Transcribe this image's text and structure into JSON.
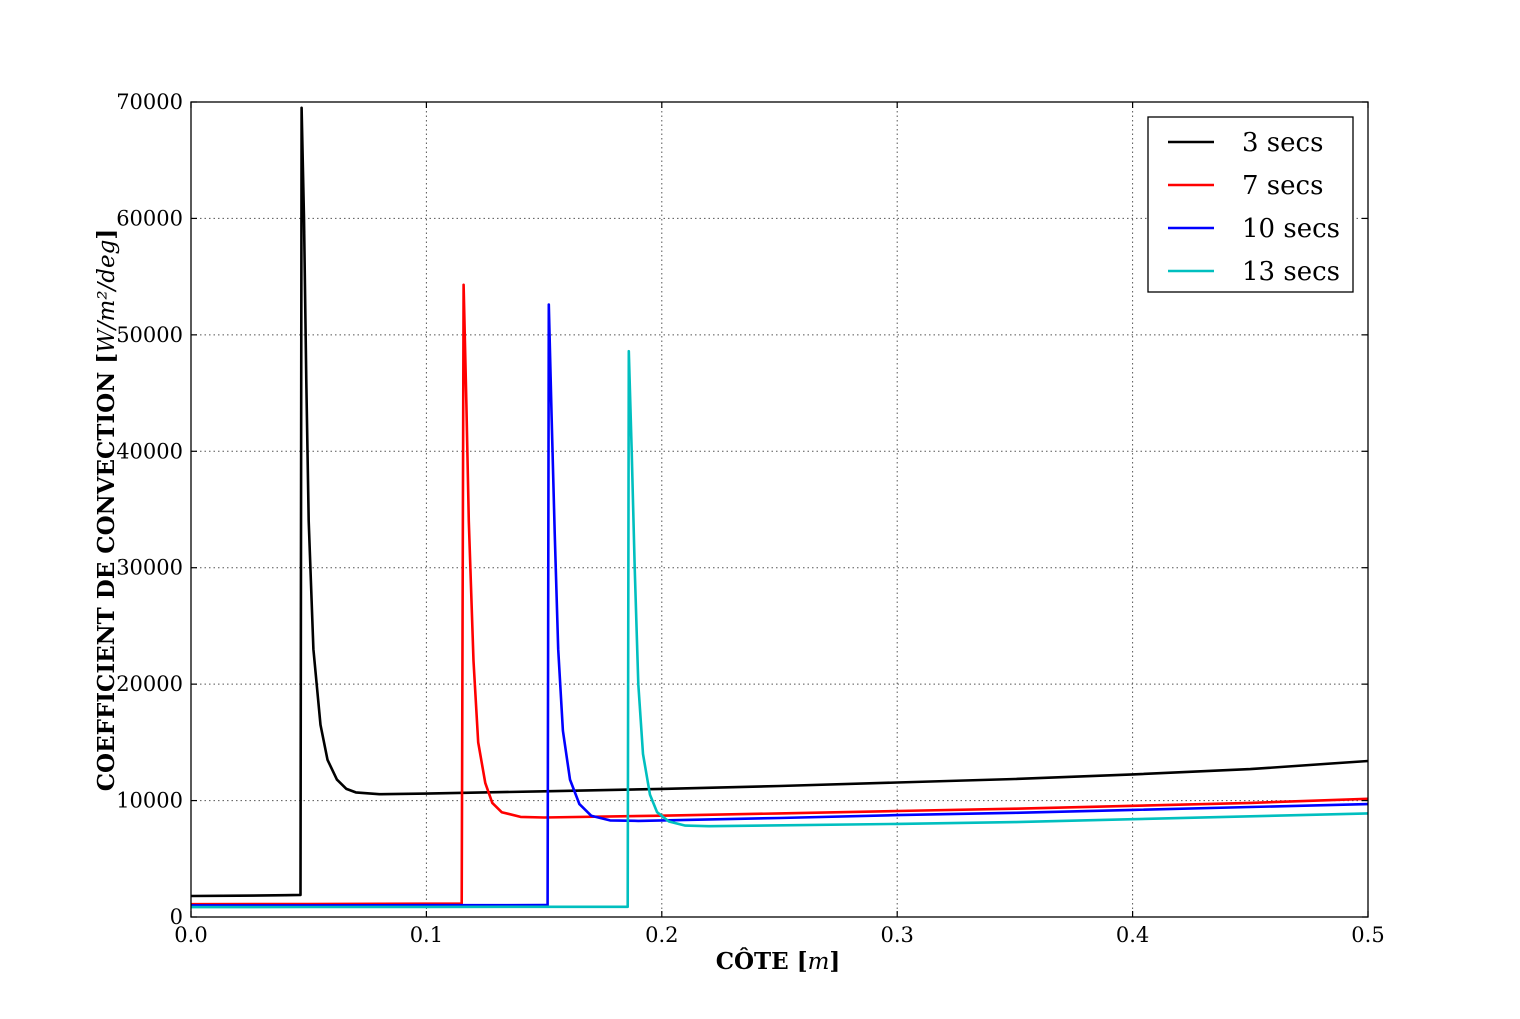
{
  "chart_data": {
    "type": "line",
    "xlabel": {
      "main": "CÔTE",
      "unit": "m"
    },
    "ylabel": {
      "main": "COEFFICIENT DE CONVECTION",
      "unit": "W/m²/deg"
    },
    "xlim": [
      0,
      0.5
    ],
    "ylim": [
      0,
      70000
    ],
    "x_ticks": [
      0.0,
      0.1,
      0.2,
      0.3,
      0.4,
      0.5
    ],
    "x_tick_labels": [
      "0.0",
      "0.1",
      "0.2",
      "0.3",
      "0.4",
      "0.5"
    ],
    "y_ticks": [
      0,
      10000,
      20000,
      30000,
      40000,
      50000,
      60000,
      70000
    ],
    "y_tick_labels": [
      "0",
      "10000",
      "20000",
      "30000",
      "40000",
      "50000",
      "60000",
      "70000"
    ],
    "grid": true,
    "legend_position": "top-right",
    "series": [
      {
        "name": "3 secs",
        "color": "#000000",
        "points": [
          [
            0.0,
            1800
          ],
          [
            0.02,
            1830
          ],
          [
            0.04,
            1870
          ],
          [
            0.0465,
            1900
          ],
          [
            0.047,
            69500
          ],
          [
            0.048,
            60000
          ],
          [
            0.049,
            46000
          ],
          [
            0.05,
            34000
          ],
          [
            0.052,
            23000
          ],
          [
            0.055,
            16500
          ],
          [
            0.058,
            13500
          ],
          [
            0.062,
            11800
          ],
          [
            0.066,
            11000
          ],
          [
            0.07,
            10700
          ],
          [
            0.08,
            10550
          ],
          [
            0.1,
            10600
          ],
          [
            0.15,
            10800
          ],
          [
            0.2,
            11000
          ],
          [
            0.25,
            11250
          ],
          [
            0.3,
            11550
          ],
          [
            0.35,
            11850
          ],
          [
            0.4,
            12250
          ],
          [
            0.45,
            12700
          ],
          [
            0.5,
            13400
          ]
        ]
      },
      {
        "name": "7 secs",
        "color": "#ff0000",
        "points": [
          [
            0.0,
            1100
          ],
          [
            0.05,
            1120
          ],
          [
            0.1,
            1140
          ],
          [
            0.115,
            1150
          ],
          [
            0.1158,
            54300
          ],
          [
            0.117,
            44000
          ],
          [
            0.118,
            34000
          ],
          [
            0.12,
            22000
          ],
          [
            0.122,
            15000
          ],
          [
            0.125,
            11500
          ],
          [
            0.128,
            9800
          ],
          [
            0.132,
            9000
          ],
          [
            0.14,
            8600
          ],
          [
            0.15,
            8550
          ],
          [
            0.2,
            8700
          ],
          [
            0.25,
            8900
          ],
          [
            0.3,
            9100
          ],
          [
            0.35,
            9300
          ],
          [
            0.4,
            9550
          ],
          [
            0.45,
            9800
          ],
          [
            0.5,
            10150
          ]
        ]
      },
      {
        "name": "10 secs",
        "color": "#0000ff",
        "points": [
          [
            0.0,
            1000
          ],
          [
            0.05,
            1000
          ],
          [
            0.1,
            1010
          ],
          [
            0.15,
            1020
          ],
          [
            0.1515,
            1020
          ],
          [
            0.152,
            52600
          ],
          [
            0.1532,
            43000
          ],
          [
            0.1545,
            33000
          ],
          [
            0.156,
            23000
          ],
          [
            0.158,
            16000
          ],
          [
            0.161,
            11800
          ],
          [
            0.165,
            9700
          ],
          [
            0.17,
            8700
          ],
          [
            0.178,
            8300
          ],
          [
            0.19,
            8250
          ],
          [
            0.25,
            8500
          ],
          [
            0.3,
            8750
          ],
          [
            0.35,
            8950
          ],
          [
            0.4,
            9200
          ],
          [
            0.45,
            9450
          ],
          [
            0.5,
            9700
          ]
        ]
      },
      {
        "name": "13 secs",
        "color": "#00bfbf",
        "points": [
          [
            0.0,
            850
          ],
          [
            0.05,
            860
          ],
          [
            0.1,
            870
          ],
          [
            0.15,
            880
          ],
          [
            0.1855,
            880
          ],
          [
            0.186,
            48600
          ],
          [
            0.1872,
            40000
          ],
          [
            0.1885,
            30000
          ],
          [
            0.19,
            20000
          ],
          [
            0.192,
            14000
          ],
          [
            0.195,
            10500
          ],
          [
            0.198,
            9000
          ],
          [
            0.203,
            8200
          ],
          [
            0.21,
            7850
          ],
          [
            0.22,
            7800
          ],
          [
            0.3,
            8000
          ],
          [
            0.35,
            8150
          ],
          [
            0.4,
            8400
          ],
          [
            0.45,
            8650
          ],
          [
            0.5,
            8900
          ]
        ]
      }
    ]
  }
}
